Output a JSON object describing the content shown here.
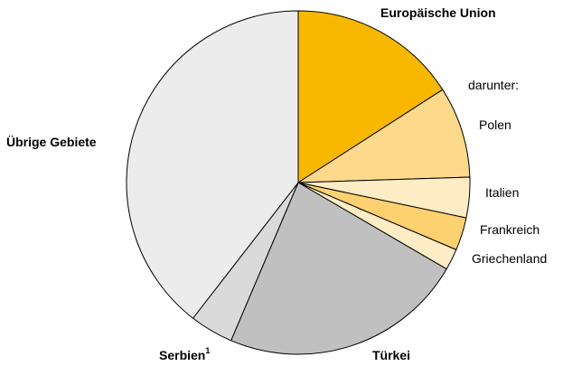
{
  "chart_data": {
    "type": "pie",
    "start_angle_deg": 0,
    "direction": "clockwise",
    "slices": [
      {
        "label": "Europäische Union",
        "value": 15.9,
        "color": "#f9b800"
      },
      {
        "label": "Polen",
        "value": 8.6,
        "color": "#fdd98b"
      },
      {
        "label": "Italien",
        "value": 3.8,
        "color": "#feecc5"
      },
      {
        "label": "Frankreich",
        "value": 3.1,
        "color": "#fdd070"
      },
      {
        "label": "Griechenland",
        "value": 2.0,
        "color": "#feecc5"
      },
      {
        "label": "Türkei",
        "value": 23.0,
        "color": "#c0c0c0"
      },
      {
        "label": "Serbien",
        "value": 4.1,
        "color": "#dadada"
      },
      {
        "label": "Übrige Gebiete",
        "value": 39.5,
        "color": "#ececec"
      }
    ],
    "sublabel": "darunter:",
    "footnote_marker": "1",
    "stroke_color": "#000000"
  }
}
